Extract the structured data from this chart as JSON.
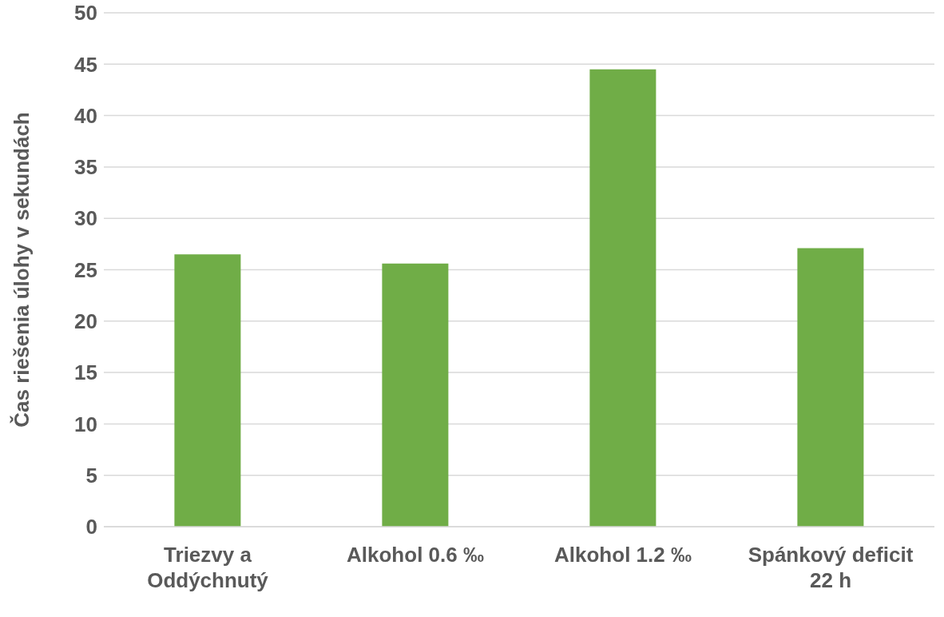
{
  "chart_data": {
    "type": "bar",
    "ylabel": "Čas riešenia úlohy v sekundách",
    "categories": [
      "Triezvy a Oddýchnutý",
      "Alkohol 0.6 ‰",
      "Alkohol 1.2 ‰",
      "Spánkový deficit 22 h"
    ],
    "values": [
      26.5,
      25.6,
      44.5,
      27.1
    ],
    "color": "#70ad47",
    "ylim": [
      0,
      50
    ],
    "yticks": [
      0,
      5,
      10,
      15,
      20,
      25,
      30,
      35,
      40,
      45,
      50
    ],
    "grid": "y"
  }
}
